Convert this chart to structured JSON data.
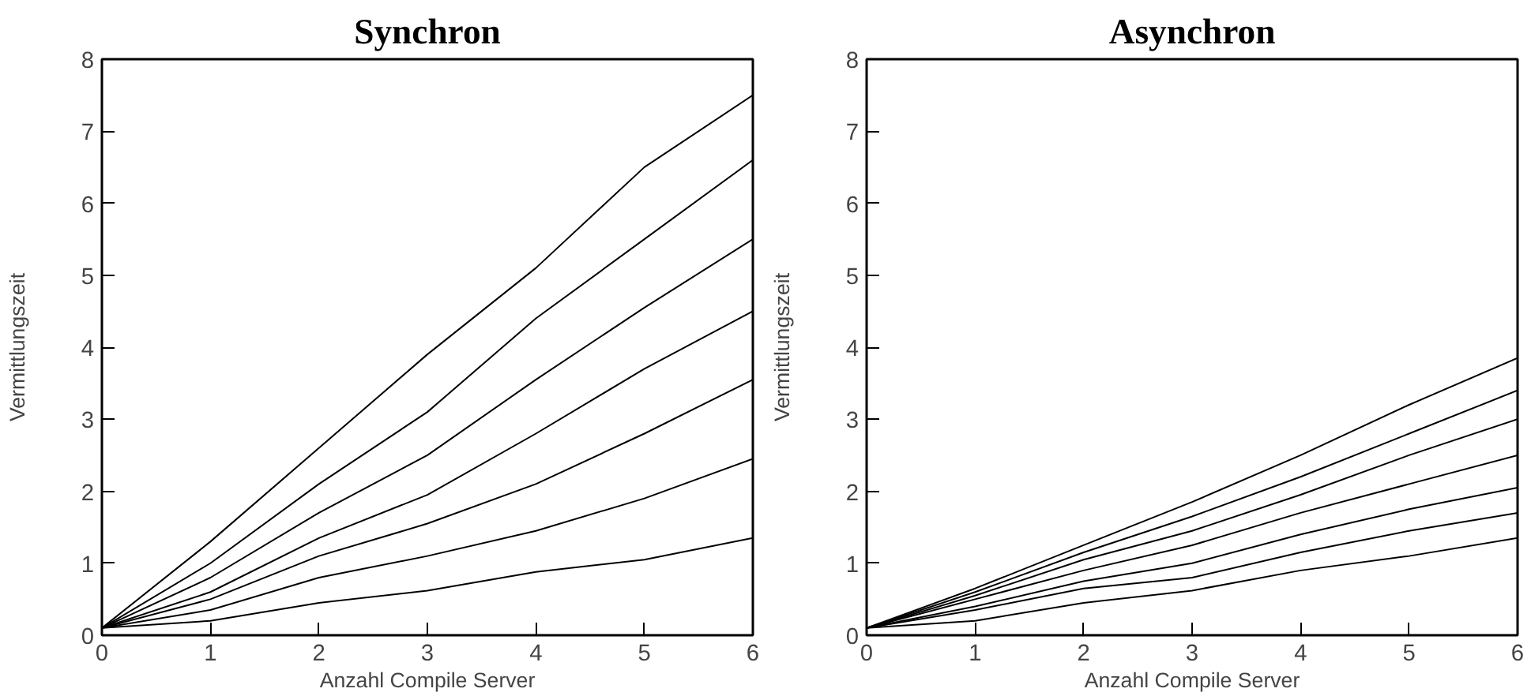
{
  "chart_data": [
    {
      "type": "line",
      "title": "Synchron",
      "xlabel": "Anzahl Compile Server",
      "ylabel": "Vermittlungszeit",
      "x": [
        0,
        1,
        2,
        3,
        4,
        5,
        6
      ],
      "xlim": [
        0,
        6
      ],
      "ylim": [
        0,
        8
      ],
      "xticks": [
        0,
        1,
        2,
        3,
        4,
        5,
        6
      ],
      "yticks": [
        0,
        1,
        2,
        3,
        4,
        5,
        6,
        7,
        8
      ],
      "grid": false,
      "marker": "none",
      "line_style": "solid",
      "series": [
        {
          "color": "#000000",
          "values": [
            0.1,
            1.3,
            2.6,
            3.9,
            5.1,
            6.5,
            7.5
          ]
        },
        {
          "color": "#000000",
          "values": [
            0.1,
            1.0,
            2.1,
            3.1,
            4.4,
            5.5,
            6.6
          ]
        },
        {
          "color": "#000000",
          "values": [
            0.1,
            0.8,
            1.7,
            2.5,
            3.55,
            4.55,
            5.5
          ]
        },
        {
          "color": "#000000",
          "values": [
            0.1,
            0.6,
            1.35,
            1.95,
            2.8,
            3.7,
            4.5
          ]
        },
        {
          "color": "#000000",
          "values": [
            0.1,
            0.5,
            1.1,
            1.55,
            2.1,
            2.8,
            3.55
          ]
        },
        {
          "color": "#000000",
          "values": [
            0.1,
            0.35,
            0.8,
            1.1,
            1.45,
            1.9,
            2.45
          ]
        },
        {
          "color": "#000000",
          "values": [
            0.1,
            0.2,
            0.45,
            0.62,
            0.88,
            1.05,
            1.35
          ]
        }
      ]
    },
    {
      "type": "line",
      "title": "Asynchron",
      "xlabel": "Anzahl Compile Server",
      "ylabel": "Vermittlungszeit",
      "x": [
        0,
        1,
        2,
        3,
        4,
        5,
        6
      ],
      "xlim": [
        0,
        6
      ],
      "ylim": [
        0,
        8
      ],
      "xticks": [
        0,
        1,
        2,
        3,
        4,
        5,
        6
      ],
      "yticks": [
        0,
        1,
        2,
        3,
        4,
        5,
        6,
        7,
        8
      ],
      "grid": false,
      "marker": "none",
      "line_style": "solid",
      "series": [
        {
          "color": "#000000",
          "values": [
            0.1,
            0.65,
            1.25,
            1.85,
            2.5,
            3.2,
            3.85
          ]
        },
        {
          "color": "#000000",
          "values": [
            0.1,
            0.6,
            1.15,
            1.65,
            2.2,
            2.8,
            3.4
          ]
        },
        {
          "color": "#000000",
          "values": [
            0.1,
            0.55,
            1.05,
            1.45,
            1.95,
            2.5,
            3.0
          ]
        },
        {
          "color": "#000000",
          "values": [
            0.1,
            0.5,
            0.9,
            1.25,
            1.7,
            2.1,
            2.5
          ]
        },
        {
          "color": "#000000",
          "values": [
            0.1,
            0.4,
            0.75,
            1.0,
            1.4,
            1.75,
            2.05
          ]
        },
        {
          "color": "#000000",
          "values": [
            0.1,
            0.35,
            0.65,
            0.8,
            1.15,
            1.45,
            1.7
          ]
        },
        {
          "color": "#000000",
          "values": [
            0.1,
            0.2,
            0.45,
            0.62,
            0.9,
            1.1,
            1.35
          ]
        }
      ]
    }
  ]
}
